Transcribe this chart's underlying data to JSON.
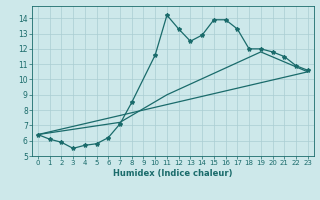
{
  "xlabel": "Humidex (Indice chaleur)",
  "bg_color": "#cde8ea",
  "grid_color": "#aacdd2",
  "line_color": "#1a6b6b",
  "xlim": [
    -0.5,
    23.5
  ],
  "ylim": [
    5,
    14.8
  ],
  "xticks": [
    0,
    1,
    2,
    3,
    4,
    5,
    6,
    7,
    8,
    9,
    10,
    11,
    12,
    13,
    14,
    15,
    16,
    17,
    18,
    19,
    20,
    21,
    22,
    23
  ],
  "yticks": [
    5,
    6,
    7,
    8,
    9,
    10,
    11,
    12,
    13,
    14
  ],
  "curve1_x": [
    0,
    1,
    2,
    3,
    4,
    5,
    6,
    7,
    8,
    10,
    11,
    12,
    13,
    14,
    15,
    16,
    17,
    18,
    19,
    20,
    21,
    22,
    23
  ],
  "curve1_y": [
    6.4,
    6.1,
    5.9,
    5.5,
    5.7,
    5.8,
    6.2,
    7.1,
    8.5,
    11.6,
    14.2,
    13.3,
    12.5,
    12.9,
    13.9,
    13.9,
    13.3,
    12.0,
    12.0,
    11.8,
    11.5,
    10.9,
    10.6
  ],
  "curve2_x": [
    0,
    23
  ],
  "curve2_y": [
    6.4,
    10.5
  ],
  "curve3_x": [
    0,
    7,
    11,
    19,
    23
  ],
  "curve3_y": [
    6.4,
    7.2,
    9.0,
    11.8,
    10.5
  ]
}
